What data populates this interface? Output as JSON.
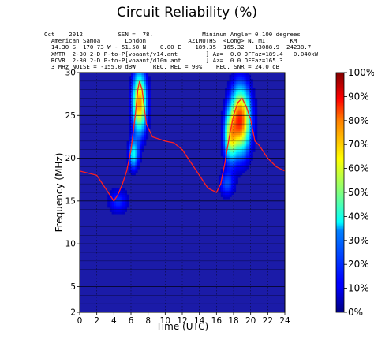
{
  "chart_data": {
    "type": "heatmap",
    "title": "Circuit Reliability (%)",
    "xlabel": "Time (UTC)",
    "ylabel": "Frequency (MHz)",
    "xlim": [
      0,
      24
    ],
    "ylim": [
      2,
      30
    ],
    "x_ticks": [
      0,
      2,
      4,
      6,
      8,
      10,
      12,
      14,
      16,
      18,
      20,
      22,
      24
    ],
    "y_ticks": [
      2,
      5,
      10,
      15,
      20,
      25,
      30
    ],
    "colorbar": {
      "colormap": "jet",
      "range": [
        0,
        100
      ],
      "ticks": [
        "0%",
        "10%",
        "20%",
        "30%",
        "40%",
        "50%",
        "60%",
        "70%",
        "80%",
        "90%",
        "100%"
      ]
    },
    "background_reliability": 2,
    "hotspots": [
      {
        "time": 7.0,
        "freq": 26.5,
        "peak": 72,
        "time_spread": 0.55,
        "freq_spread": 2.4
      },
      {
        "time": 6.3,
        "freq": 20.5,
        "peak": 35,
        "time_spread": 0.4,
        "freq_spread": 1.2
      },
      {
        "time": 4.5,
        "freq": 15.0,
        "peak": 15,
        "time_spread": 0.8,
        "freq_spread": 1.0
      },
      {
        "time": 18.8,
        "freq": 24.5,
        "peak": 82,
        "time_spread": 0.8,
        "freq_spread": 2.6
      },
      {
        "time": 17.6,
        "freq": 22.5,
        "peak": 45,
        "time_spread": 0.5,
        "freq_spread": 2.0
      },
      {
        "time": 17.2,
        "freq": 17.0,
        "peak": 18,
        "time_spread": 0.6,
        "freq_spread": 1.0
      }
    ],
    "series": [
      {
        "kind": "muf_line",
        "color": "#ff2020",
        "x": [
          0,
          2,
          4,
          4.5,
          5,
          5.5,
          6,
          6.5,
          6.8,
          7.0,
          7.3,
          7.8,
          8.5,
          10,
          11,
          12,
          13,
          14,
          15,
          16,
          16.5,
          17,
          17.5,
          18,
          18.5,
          19,
          19.5,
          20,
          20.5,
          21,
          22,
          23,
          24
        ],
        "y": [
          18.5,
          18.0,
          15.0,
          15.8,
          17.0,
          18.5,
          21.0,
          25.0,
          28.0,
          29.0,
          28.0,
          24.0,
          22.5,
          22.0,
          21.8,
          21.0,
          19.5,
          18.0,
          16.5,
          16.0,
          17.0,
          19.5,
          22.5,
          25.0,
          26.5,
          27.0,
          26.0,
          24.5,
          22.0,
          21.5,
          20.0,
          19.0,
          18.5
        ]
      }
    ]
  },
  "header": {
    "lines": [
      "Oct    2012          SSN =  78.              Minimum Angle= 0.100 degrees",
      "  American Samoa       London            AZIMUTHS  <Long> N. MI.      KM",
      "  14.30 S  170.73 W - 51.58 N    0.00 E    189.35  165.32   13088.9  24238.7",
      "  XMTR  2-30 2-D P-to-P[voaant/v14.ant        ] Az=  0.0 OFFaz=189.4   0.040kW",
      "  RCVR  2-30 2-D P-to-P[voaant/d10m.ant       ] Az=  0.0 OFFaz=165.3",
      "  3 MHz NOISE = -155.0 dBW     REQ. REL = 90%    REQ. SNR = 24.0 dB"
    ]
  }
}
